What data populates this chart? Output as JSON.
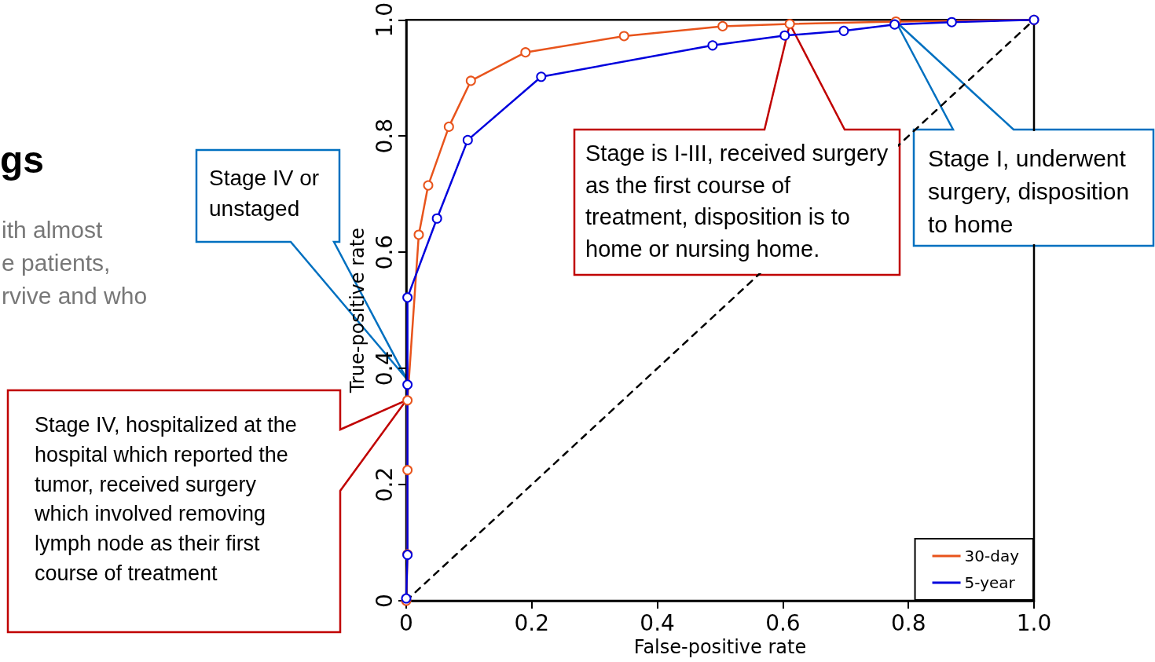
{
  "chart_data": {
    "type": "line",
    "xlabel": "False-positive rate",
    "ylabel": "True-positive rate",
    "xlim": [
      0,
      1
    ],
    "ylim": [
      0,
      1
    ],
    "xticks": [
      0,
      0.2,
      0.4,
      0.6,
      0.8,
      {
        "value": 1,
        "label": "1.0"
      }
    ],
    "yticks": [
      0,
      0.2,
      0.4,
      0.6,
      0.8,
      {
        "value": 1,
        "label": "1.0"
      }
    ],
    "grid": false,
    "legend": "bottom right",
    "marker": "circle",
    "line_style": "solid",
    "series": [
      {
        "name": "30-day",
        "color": "#e8541c",
        "x": [
          0,
          0.002,
          0.002,
          0.002,
          0.02,
          0.035,
          0.068,
          0.103,
          0.19,
          0.347,
          0.504,
          0.611,
          0.78,
          1
        ],
        "values": [
          0,
          0.08,
          0.225,
          0.345,
          0.63,
          0.715,
          0.816,
          0.895,
          0.944,
          0.972,
          0.989,
          0.993,
          0.997,
          1
        ]
      },
      {
        "name": "5-year",
        "color": "#0000dd",
        "x": [
          0,
          0.002,
          0.002,
          0.002,
          0.049,
          0.098,
          0.215,
          0.488,
          0.603,
          0.697,
          0.778,
          0.869,
          1
        ],
        "values": [
          0.004,
          0.079,
          0.372,
          0.522,
          0.658,
          0.793,
          0.902,
          0.956,
          0.973,
          0.981,
          0.992,
          0.996,
          1
        ]
      },
      {
        "color": "#000000",
        "line_style": "dashed",
        "marker": "none",
        "x": [
          0,
          1
        ],
        "values": [
          0,
          1
        ]
      }
    ],
    "annotations": [
      "Stage IV or unstaged",
      "Stage IV, hospitalized at the hospital which reported the tumor, received surgery which involved removing lymph node as their first course of treatment",
      "Stage is I-III, received surgery as the first course of treatment, disposition is to home or nursing home.",
      "Stage I, underwent surgery, disposition to home",
      "gs",
      "ith almost",
      "e patients,",
      "rvive and who"
    ]
  }
}
